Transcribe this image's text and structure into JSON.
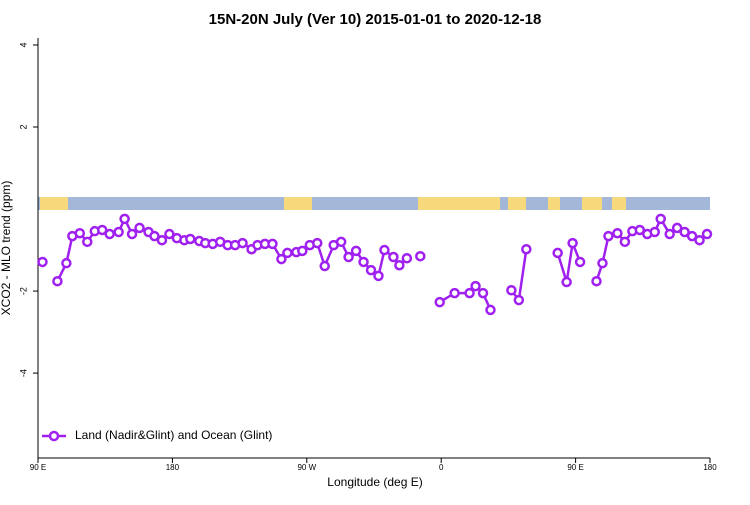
{
  "chart_data": {
    "type": "line",
    "title": "15N-20N July (Ver 10)   2015-01-01 to 2020-12-18",
    "x_label": "Longitude (deg E)",
    "y_label": "XCO2 - MLO trend (ppm)",
    "xlim": [
      90,
      540
    ],
    "xticks": [
      {
        "value": 90,
        "label": "90 E"
      },
      {
        "value": 180,
        "label": "180"
      },
      {
        "value": 270,
        "label": "90 W"
      },
      {
        "value": 360,
        "label": "0"
      },
      {
        "value": 450,
        "label": "90 E"
      },
      {
        "value": 540,
        "label": "180"
      }
    ],
    "ylim": [
      -6.07,
      4.17
    ],
    "yticks": [
      4,
      2,
      -2,
      -4
    ],
    "legend": "bottom-left",
    "x": [
      93,
      98,
      103,
      109,
      113,
      118,
      123,
      128,
      133,
      138,
      144,
      148,
      153,
      158,
      164,
      168,
      173,
      178,
      183,
      188,
      192,
      198,
      202,
      207,
      212,
      217,
      222,
      227,
      233,
      237,
      242,
      247,
      253,
      257,
      263,
      267,
      272,
      277,
      282,
      288,
      293,
      298,
      303,
      308,
      313,
      318,
      322,
      328,
      332,
      337,
      342,
      346,
      352,
      359,
      369,
      379,
      383,
      388,
      393,
      400,
      407,
      412,
      417,
      428,
      438,
      444,
      448,
      453,
      458,
      464,
      468,
      472,
      478,
      483,
      488,
      493,
      498,
      503,
      507,
      513,
      518,
      523,
      528,
      533,
      538
    ],
    "series": [
      {
        "name": "Land (Nadir&Glint) and Ocean (Glint)",
        "color": "#a020f0",
        "values": [
          -1.29,
          null,
          -1.76,
          -1.32,
          -0.66,
          -0.59,
          -0.8,
          -0.54,
          -0.51,
          -0.61,
          -0.56,
          -0.24,
          -0.61,
          -0.46,
          -0.56,
          -0.66,
          -0.76,
          -0.61,
          -0.71,
          -0.76,
          -0.73,
          -0.78,
          -0.83,
          -0.85,
          -0.8,
          -0.88,
          -0.88,
          -0.83,
          -0.98,
          -0.88,
          -0.85,
          -0.85,
          -1.22,
          -1.07,
          -1.05,
          -1.02,
          -0.88,
          -0.83,
          -1.39,
          -0.88,
          -0.8,
          -1.17,
          -1.02,
          -1.29,
          -1.49,
          -1.63,
          -1.0,
          -1.17,
          -1.37,
          -1.2,
          null,
          -1.15,
          null,
          -2.27,
          -2.05,
          -2.05,
          -1.88,
          -2.05,
          -2.46,
          null,
          -1.98,
          -2.22,
          -0.98,
          null,
          -1.07,
          -1.78,
          -0.83,
          -1.29,
          null,
          -1.76,
          -1.32,
          -0.66,
          -0.59,
          -0.8,
          -0.54,
          -0.51,
          -0.61,
          -0.56,
          -0.24,
          -0.61,
          -0.46,
          -0.56,
          -0.66,
          -0.76,
          -0.61
        ]
      }
    ]
  }
}
